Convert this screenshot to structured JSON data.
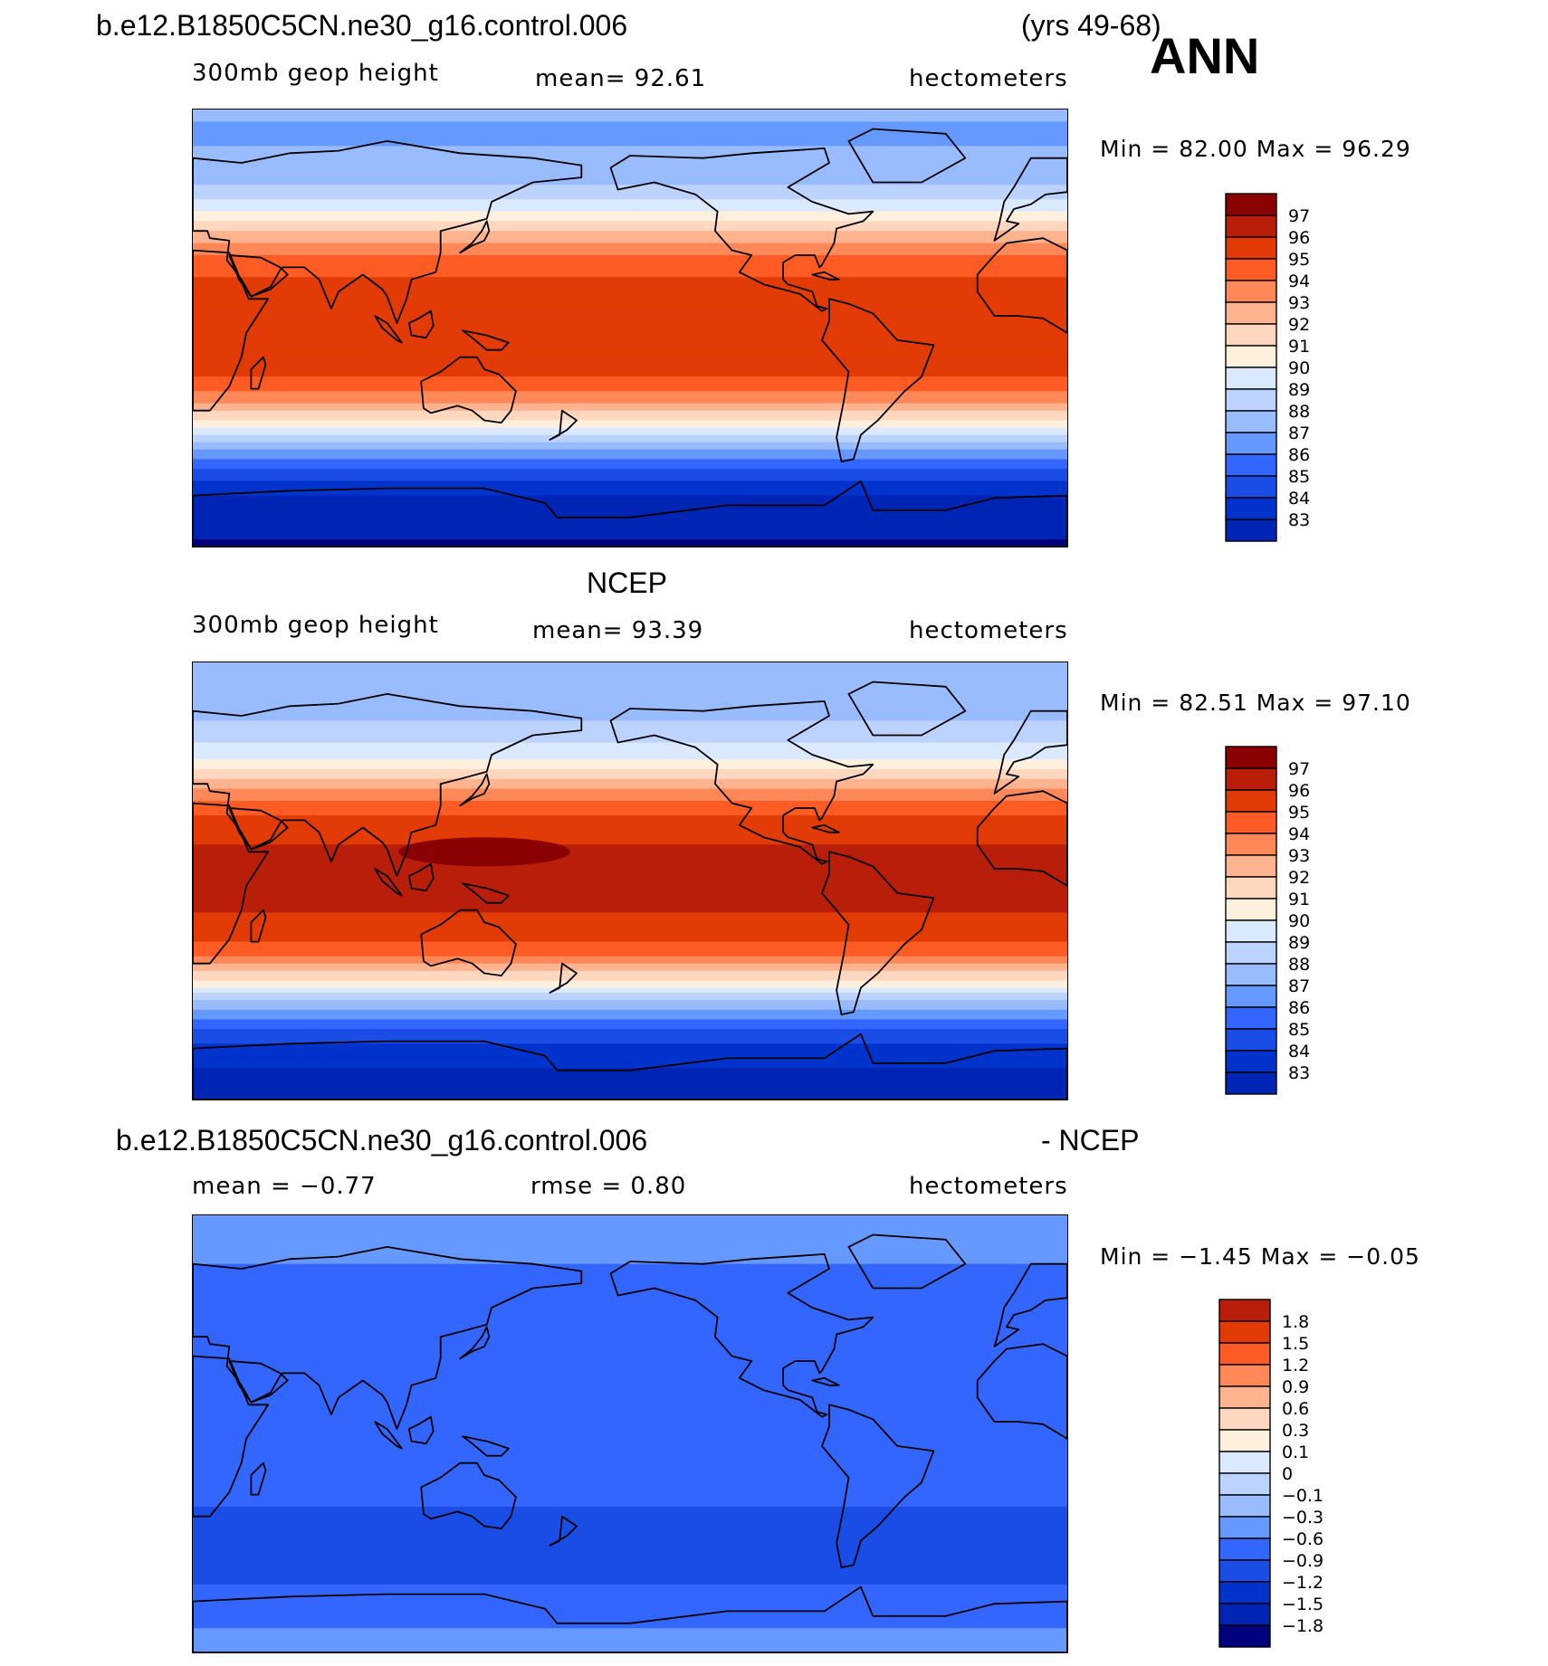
{
  "header": {
    "case_title": "b.e12.B1850C5CN.ne30_g16.control.006",
    "years": "(yrs 49-68)",
    "season": "ANN"
  },
  "colors": {
    "abs_levels": [
      "#00007f",
      "#0024b3",
      "#0033cc",
      "#1a4de6",
      "#3366ff",
      "#6699ff",
      "#99bbff",
      "#bcd3ff",
      "#dbe9ff",
      "#fff0dd",
      "#ffd7bf",
      "#ffb38f",
      "#ff8858",
      "#ff5b24",
      "#e23b06",
      "#b91e0a",
      "#8b0000"
    ],
    "diff_levels": [
      "#00007f",
      "#0024b3",
      "#0033cc",
      "#1a4de6",
      "#3366ff",
      "#6699ff",
      "#99bbff",
      "#bcd3ff",
      "#dbe9ff",
      "#fff0dd",
      "#ffd7bf",
      "#ffb38f",
      "#ff8858",
      "#ff5b24",
      "#e23b06",
      "#b91e0a",
      "#8b0000"
    ],
    "land_outline": "#000000"
  },
  "panels": [
    {
      "id": "model",
      "heading": "",
      "left_label": "300mb  geop  height",
      "center_label": "mean=   92.61",
      "right_label": "hectometers",
      "minmax": "Min  =   82.00  Max  =   96.29"
    },
    {
      "id": "obs",
      "heading": "NCEP",
      "left_label": "300mb  geop  height",
      "center_label": "mean=   93.39",
      "right_label": "hectometers",
      "minmax": "Min  =   82.51  Max  =   97.10"
    },
    {
      "id": "diff",
      "heading_left": "b.e12.B1850C5CN.ne30_g16.control.006",
      "heading_right": "- NCEP",
      "left_label": "mean  =   −0.77",
      "center_label": "rmse  =     0.80",
      "right_label": "hectometers",
      "minmax": "Min  =   −1.45  Max  =   −0.05"
    }
  ],
  "chart_data": [
    {
      "type": "heatmap",
      "title": "b.e12.B1850C5CN.ne30_g16.control.006 (yrs 49-68) ANN",
      "variable": "300mb geop height",
      "units": "hectometers",
      "mean": 92.61,
      "min": 82.0,
      "max": 96.29,
      "colorbar_levels": [
        "97",
        "96",
        "95",
        "94",
        "93",
        "92",
        "91",
        "90",
        "89",
        "88",
        "87",
        "86",
        "85",
        "84",
        "83"
      ],
      "zonal_profile": {
        "lat": [
          90,
          80,
          70,
          60,
          50,
          40,
          30,
          20,
          10,
          0,
          -10,
          -20,
          -30,
          -40,
          -50,
          -60,
          -70,
          -80,
          -90
        ],
        "value": [
          87.6,
          87.4,
          87.6,
          88.4,
          89.9,
          92.4,
          94.5,
          95.6,
          96.0,
          96.1,
          96.0,
          95.5,
          93.8,
          90.8,
          87.4,
          84.9,
          83.4,
          82.7,
          82.4
        ]
      }
    },
    {
      "type": "heatmap",
      "title": "NCEP",
      "variable": "300mb geop height",
      "units": "hectometers",
      "mean": 93.39,
      "min": 82.51,
      "max": 97.1,
      "colorbar_levels": [
        "97",
        "96",
        "95",
        "94",
        "93",
        "92",
        "91",
        "90",
        "89",
        "88",
        "87",
        "86",
        "85",
        "84",
        "83"
      ],
      "zonal_profile": {
        "lat": [
          90,
          80,
          70,
          60,
          50,
          40,
          30,
          20,
          10,
          0,
          -10,
          -20,
          -30,
          -40,
          -50,
          -60,
          -70,
          -80,
          -90
        ],
        "value": [
          88.3,
          88.0,
          88.2,
          89.0,
          90.5,
          93.0,
          95.2,
          96.3,
          96.7,
          96.7,
          96.6,
          96.3,
          94.7,
          91.7,
          88.3,
          85.6,
          84.0,
          83.3,
          83.1
        ]
      }
    },
    {
      "type": "heatmap",
      "title": "b.e12.B1850C5CN.ne30_g16.control.006 - NCEP",
      "units": "hectometers",
      "mean": -0.77,
      "rmse": 0.8,
      "min": -1.45,
      "max": -0.05,
      "colorbar_levels": [
        "1.8",
        "1.5",
        "1.2",
        "0.9",
        "0.6",
        "0.3",
        "0.1",
        "0",
        "−0.1",
        "−0.3",
        "−0.6",
        "−0.9",
        "−1.2",
        "−1.5",
        "−1.8"
      ],
      "zonal_profile": {
        "lat": [
          90,
          80,
          70,
          60,
          50,
          40,
          30,
          20,
          10,
          0,
          -10,
          -20,
          -30,
          -40,
          -50,
          -60,
          -70,
          -80,
          -90
        ],
        "value": [
          -0.5,
          -0.5,
          -0.6,
          -0.7,
          -0.8,
          -0.9,
          -0.85,
          -0.75,
          -0.7,
          -0.7,
          -0.75,
          -0.8,
          -0.9,
          -1.05,
          -1.1,
          -0.95,
          -0.75,
          -0.6,
          -0.6
        ]
      }
    }
  ]
}
